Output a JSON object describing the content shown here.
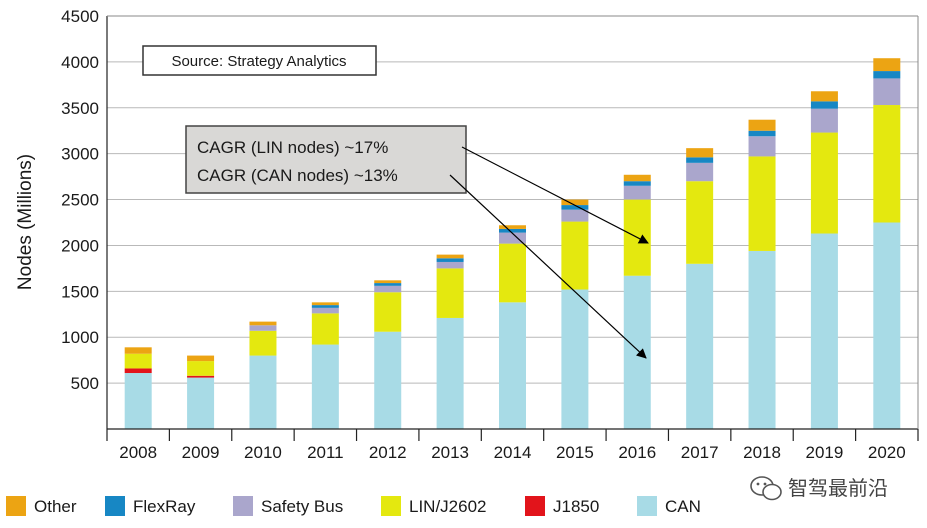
{
  "chart_data": {
    "type": "bar",
    "stacked": true,
    "categories": [
      "2008",
      "2009",
      "2010",
      "2011",
      "2012",
      "2013",
      "2014",
      "2015",
      "2016",
      "2017",
      "2018",
      "2019",
      "2020"
    ],
    "ylabel": "Nodes (Millions)",
    "ylim": [
      0,
      4500
    ],
    "yticks": [
      500,
      1000,
      1500,
      2000,
      2500,
      3000,
      3500,
      4000,
      4500
    ],
    "grid": true,
    "legend_position": "bottom",
    "series": [
      {
        "name": "CAN",
        "color": "#a8dbe6",
        "values": [
          610,
          560,
          800,
          920,
          1060,
          1210,
          1380,
          1520,
          1670,
          1800,
          1940,
          2130,
          2250
        ]
      },
      {
        "name": "J1850",
        "color": "#e2141b",
        "values": [
          50,
          20,
          0,
          0,
          0,
          0,
          0,
          0,
          0,
          0,
          0,
          0,
          0
        ]
      },
      {
        "name": "LIN/J2602",
        "color": "#e4e80f",
        "values": [
          160,
          160,
          270,
          340,
          430,
          540,
          640,
          740,
          830,
          900,
          1030,
          1100,
          1280
        ]
      },
      {
        "name": "Safety Bus",
        "color": "#aaa6cc",
        "values": [
          0,
          0,
          60,
          60,
          70,
          70,
          120,
          130,
          150,
          200,
          220,
          260,
          290
        ]
      },
      {
        "name": "FlexRay",
        "color": "#1787c4",
        "values": [
          0,
          0,
          0,
          30,
          30,
          40,
          40,
          50,
          50,
          60,
          60,
          80,
          80
        ]
      },
      {
        "name": "Other",
        "color": "#eca413",
        "values": [
          70,
          60,
          40,
          30,
          30,
          40,
          40,
          60,
          70,
          100,
          120,
          110,
          140
        ]
      }
    ],
    "annotations": {
      "source": "Source: Strategy Analytics",
      "cagr_lin": "CAGR (LIN nodes) ~17%",
      "cagr_can": "CAGR (CAN nodes) ~13%"
    }
  },
  "watermark": {
    "icon": "wechat-icon",
    "text": "智驾最前沿"
  }
}
